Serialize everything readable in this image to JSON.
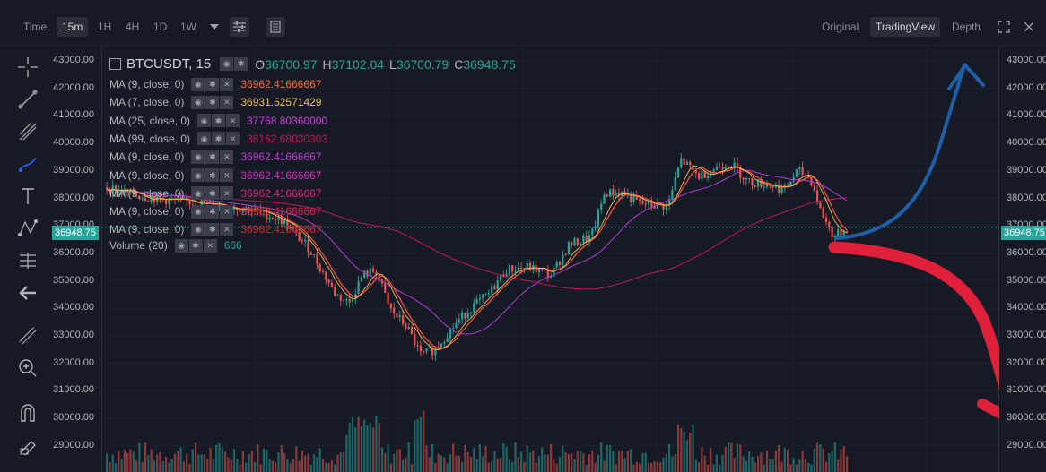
{
  "toolbar": {
    "time_label": "Time",
    "intervals": [
      "15m",
      "1H",
      "4H",
      "1D",
      "1W"
    ],
    "active_interval": "15m",
    "views": [
      "Original",
      "TradingView",
      "Depth"
    ],
    "active_view": "TradingView"
  },
  "legend": {
    "symbol": "BTCUSDT, 15",
    "open_label": "O",
    "open": "36700.97",
    "high_label": "H",
    "high": "37102.04",
    "low_label": "L",
    "low": "36700.79",
    "close_label": "C",
    "close": "36948.75",
    "indicators": [
      {
        "label": "MA (9, close, 0)",
        "value": "36962.41666667",
        "color": "#ff6a3a"
      },
      {
        "label": "MA (7, close, 0)",
        "value": "36931.52571429",
        "color": "#f5c242"
      },
      {
        "label": "MA (25, close, 0)",
        "value": "37768.80360000",
        "color": "#d23ce0"
      },
      {
        "label": "MA (99, close, 0)",
        "value": "38162.68030303",
        "color": "#c2185b"
      },
      {
        "label": "MA (9, close, 0)",
        "value": "36962.41666667",
        "color": "#c23ccf"
      },
      {
        "label": "MA (9, close, 0)",
        "value": "36962.41666667",
        "color": "#d62fc0"
      },
      {
        "label": "MA (9, close, 0)",
        "value": "36962.41666667",
        "color": "#e0277f"
      },
      {
        "label": "MA (9, close, 0)",
        "value": "36962.41666667",
        "color": "#e0244f"
      },
      {
        "label": "MA (9, close, 0)",
        "value": "36962.41666667",
        "color": "#e02430"
      }
    ],
    "volume_label": "Volume (20)",
    "volume_value": "666"
  },
  "axis": {
    "ticks": [
      "43000.00",
      "42000.00",
      "41000.00",
      "40000.00",
      "39000.00",
      "38000.00",
      "37000.00",
      "36000.00",
      "35000.00",
      "34000.00",
      "33000.00",
      "32000.00",
      "31000.00",
      "30000.00",
      "29000.00"
    ],
    "current_price": "36948.75"
  },
  "colors": {
    "up": "#26a69a",
    "down": "#ef5350",
    "annotation_up": "#1e5fa8",
    "annotation_down": "#e0203a"
  }
}
